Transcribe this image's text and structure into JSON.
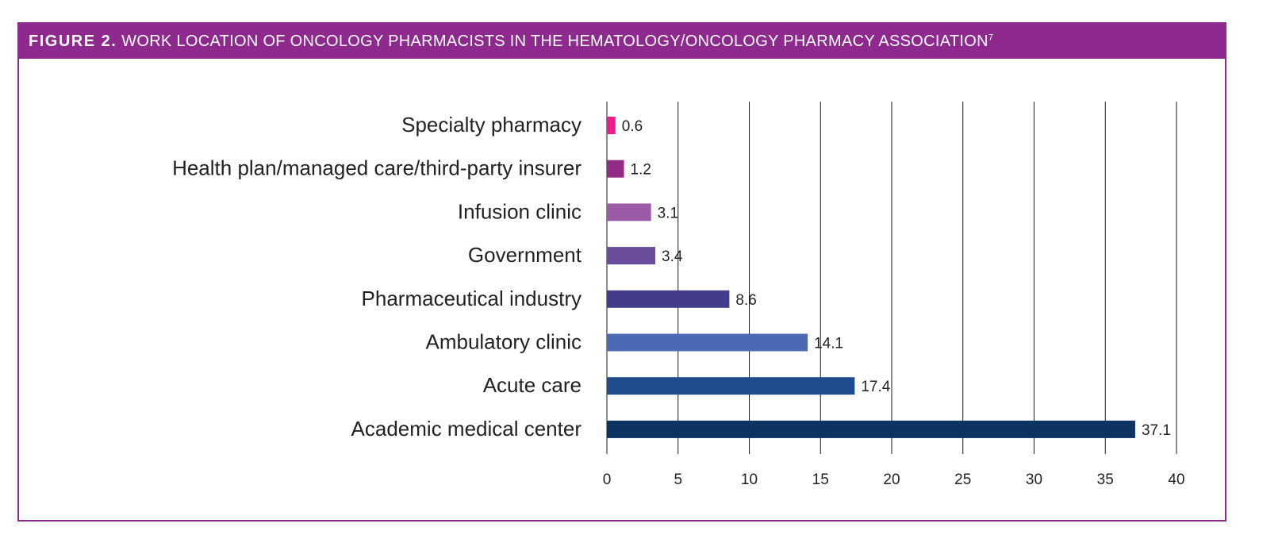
{
  "figure": {
    "label": "FIGURE 2.",
    "title": "WORK LOCATION OF ONCOLOGY PHARMACISTS IN THE HEMATOLOGY/ONCOLOGY PHARMACY ASSOCIATION",
    "footnote": "7",
    "border_color": "#8e2a8e"
  },
  "chart_data": {
    "type": "bar",
    "orientation": "horizontal",
    "title": "WORK LOCATION OF ONCOLOGY PHARMACISTS IN THE HEMATOLOGY/ONCOLOGY PHARMACY ASSOCIATION",
    "xlabel": "",
    "ylabel": "",
    "xlim": [
      0,
      40
    ],
    "x_ticks": [
      "0",
      "5",
      "10",
      "15",
      "20",
      "25",
      "30",
      "35",
      "40"
    ],
    "grid": true,
    "categories": [
      "Specialty pharmacy",
      "Health plan/managed care/third-party insurer",
      "Infusion clinic",
      "Government",
      "Pharmaceutical industry",
      "Ambulatory clinic",
      "Acute care",
      "Academic medical center"
    ],
    "values": [
      0.6,
      1.2,
      3.1,
      3.4,
      8.6,
      14.1,
      17.4,
      37.1
    ],
    "value_labels": [
      "0.6",
      "1.2",
      "3.1",
      "3.4",
      "8.6",
      "14.1",
      "17.4",
      "37.1"
    ],
    "colors": [
      "#ec1c8c",
      "#922b85",
      "#9b5aa5",
      "#6a4c9c",
      "#433b8c",
      "#4a6ab3",
      "#1f4b8f",
      "#0b3560"
    ]
  }
}
